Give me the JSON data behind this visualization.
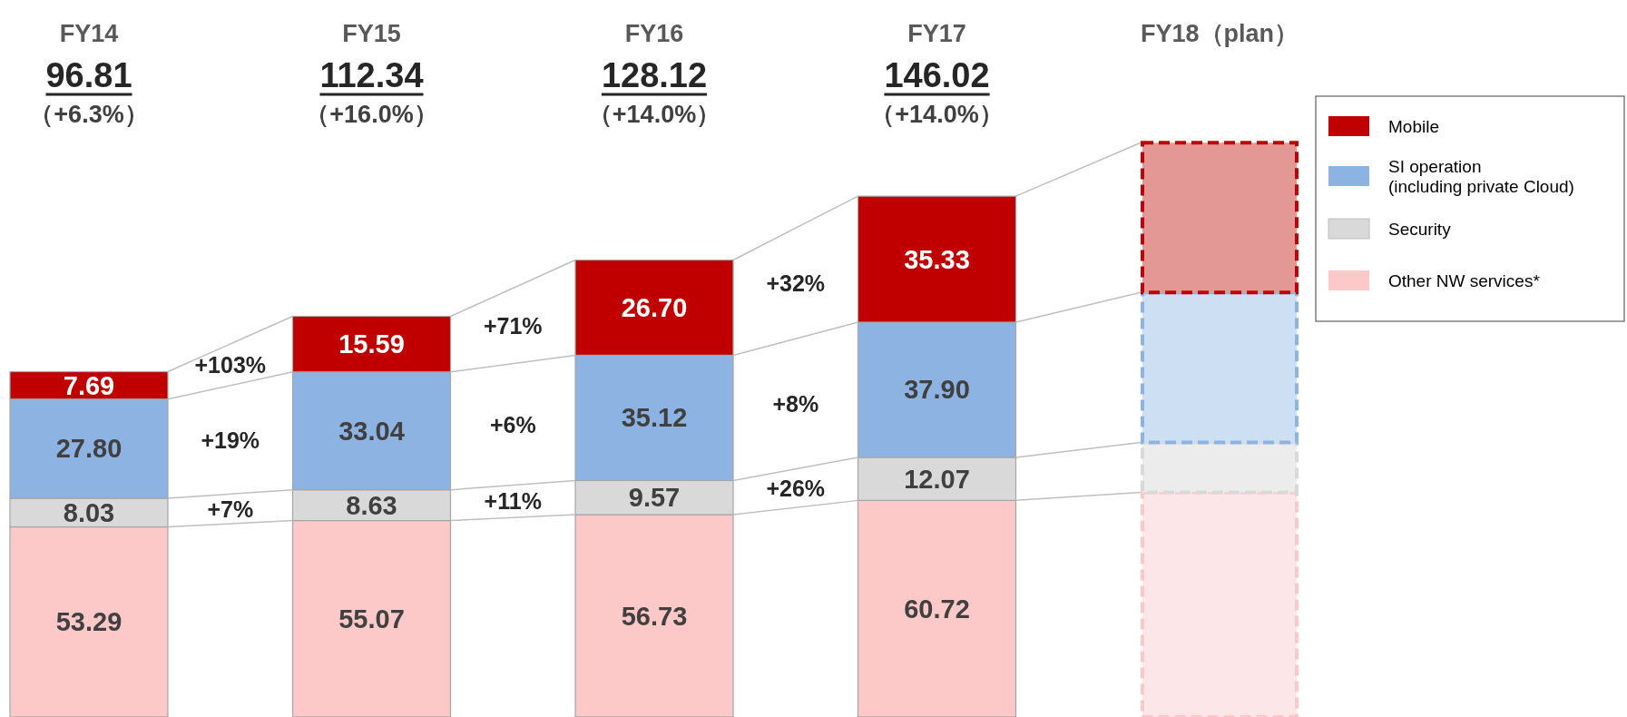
{
  "chart_data": {
    "type": "bar",
    "stacked": true,
    "legend": "right",
    "categories": [
      "FY14",
      "FY15",
      "FY16",
      "FY17",
      "FY18（plan）"
    ],
    "series": [
      {
        "name": "Other NW services*",
        "color": "#fcc8c8",
        "colors": [
          "#fcc8c8",
          "#fcc8c8",
          "#fcc8c8",
          "#fcc8c8",
          "#fde6e8"
        ],
        "values": [
          53.29,
          55.07,
          56.73,
          60.72,
          63
        ],
        "value_labels": [
          "53.29",
          "55.07",
          "56.73",
          "60.72",
          null
        ]
      },
      {
        "name": "Security",
        "color": "#d9d9d9",
        "colors": [
          "#d9d9d9",
          "#d9d9d9",
          "#d9d9d9",
          "#d9d9d9",
          "#ececec"
        ],
        "values": [
          8.03,
          8.63,
          9.57,
          12.07,
          14
        ],
        "value_labels": [
          "8.03",
          "8.63",
          "9.57",
          "12.07",
          null
        ]
      },
      {
        "name": "SI operation\n(including private Cloud)",
        "color": "#8db3e2",
        "colors": [
          "#8db3e2",
          "#8db3e2",
          "#8db3e2",
          "#8db3e2",
          "#cddff2"
        ],
        "values": [
          27.8,
          33.04,
          35.12,
          37.9,
          42
        ],
        "value_labels": [
          "27.80",
          "33.04",
          "35.12",
          "37.90",
          null
        ]
      },
      {
        "name": "Mobile",
        "color": "#c00000",
        "colors": [
          "#c00000",
          "#c00000",
          "#c00000",
          "#c00000",
          "#e39896"
        ],
        "values": [
          7.69,
          15.59,
          26.7,
          35.33,
          42
        ],
        "value_labels": [
          "7.69",
          "15.59",
          "26.70",
          "35.33",
          null
        ]
      }
    ],
    "annotations": [
      "96.81",
      "112.34",
      "128.12",
      "146.02",
      "（+6.3%）",
      "（+16.0%）",
      "（+14.0%）",
      "（+14.0%）",
      "+7%",
      "+19%",
      "+103%",
      "+11%",
      "+6%",
      "+71%",
      "+26%",
      "+8%",
      "+32%"
    ]
  }
}
